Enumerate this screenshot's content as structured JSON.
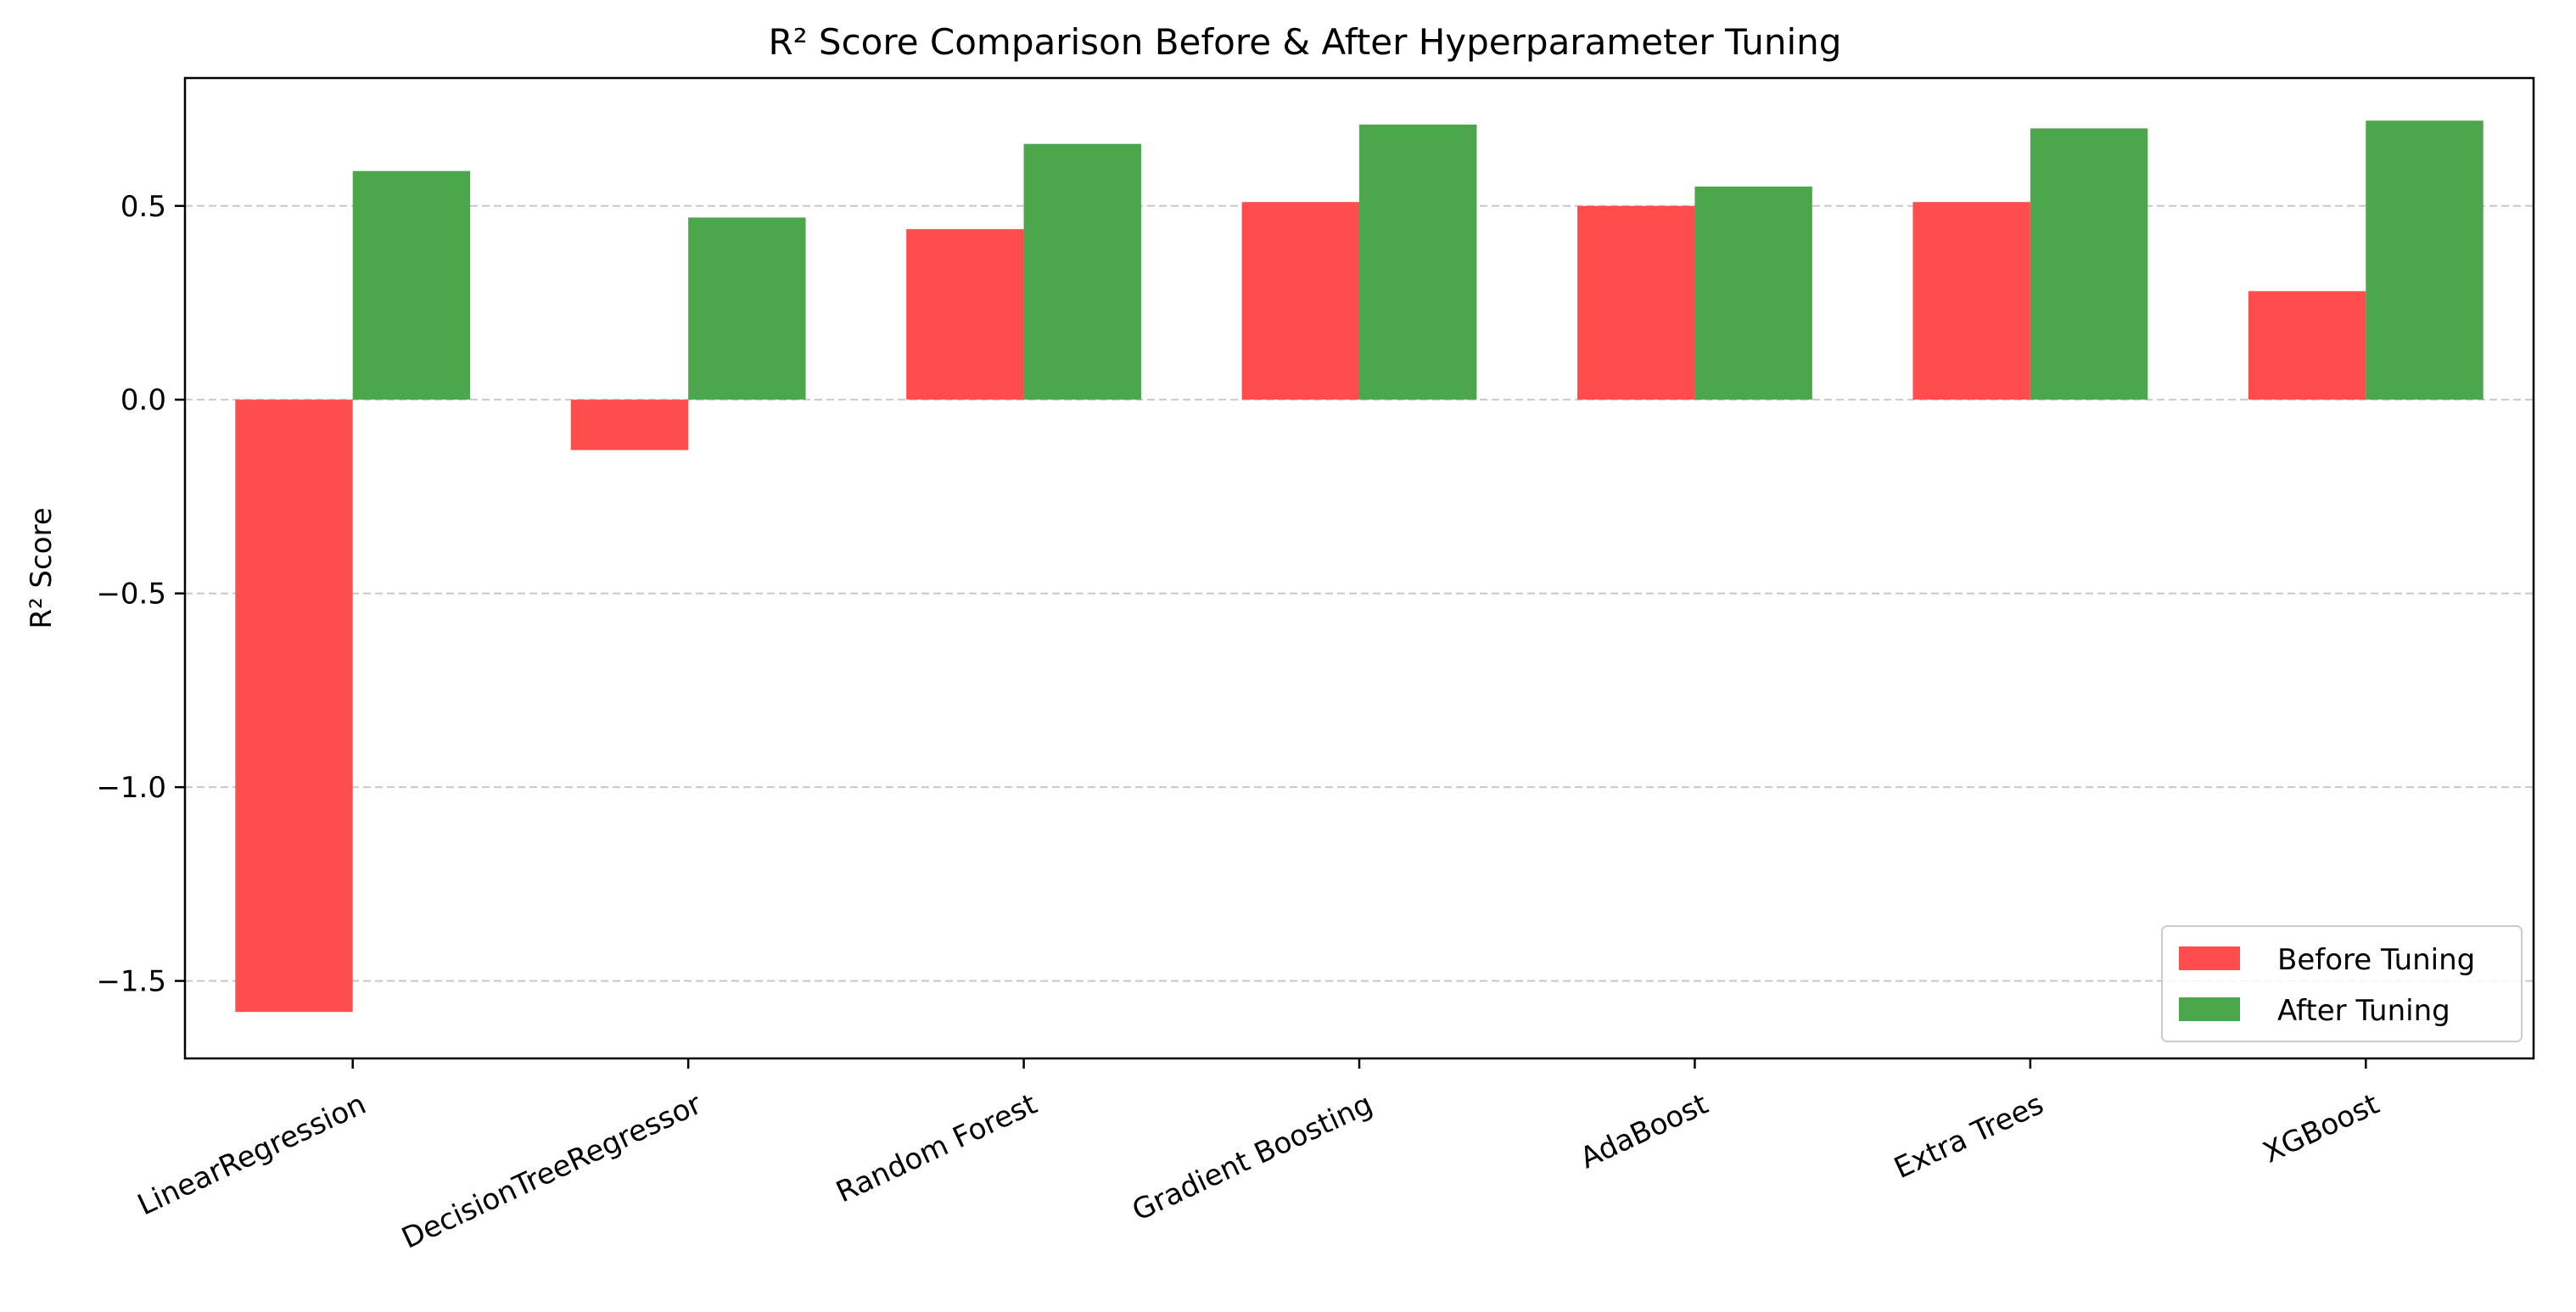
{
  "chart_data": {
    "type": "bar",
    "title": "R² Score Comparison Before & After Hyperparameter Tuning",
    "xlabel": "",
    "ylabel": "R² Score",
    "categories": [
      "LinearRegression",
      "DecisionTreeRegressor",
      "Random Forest",
      "Gradient Boosting",
      "AdaBoost",
      "Extra Trees",
      "XGBoost"
    ],
    "series": [
      {
        "name": "Before Tuning",
        "color": "#ff4c4c",
        "values": [
          -1.58,
          -0.13,
          0.44,
          0.51,
          0.5,
          0.51,
          0.28
        ]
      },
      {
        "name": "After Tuning",
        "color": "#4ca64c",
        "values": [
          0.59,
          0.47,
          0.66,
          0.71,
          0.55,
          0.7,
          0.72
        ]
      }
    ],
    "ylim": [
      -1.7,
      0.83
    ],
    "yticks": [
      -1.5,
      -1.0,
      -0.5,
      0.0,
      0.5
    ],
    "ytick_labels": [
      "−1.5",
      "−1.0",
      "−0.5",
      "0.0",
      "0.5"
    ],
    "grid": {
      "axis": "y",
      "style": "dashed",
      "color": "#c8c8c8"
    },
    "legend": {
      "position": "lower-right"
    },
    "xtick_rotation_deg": -25
  }
}
